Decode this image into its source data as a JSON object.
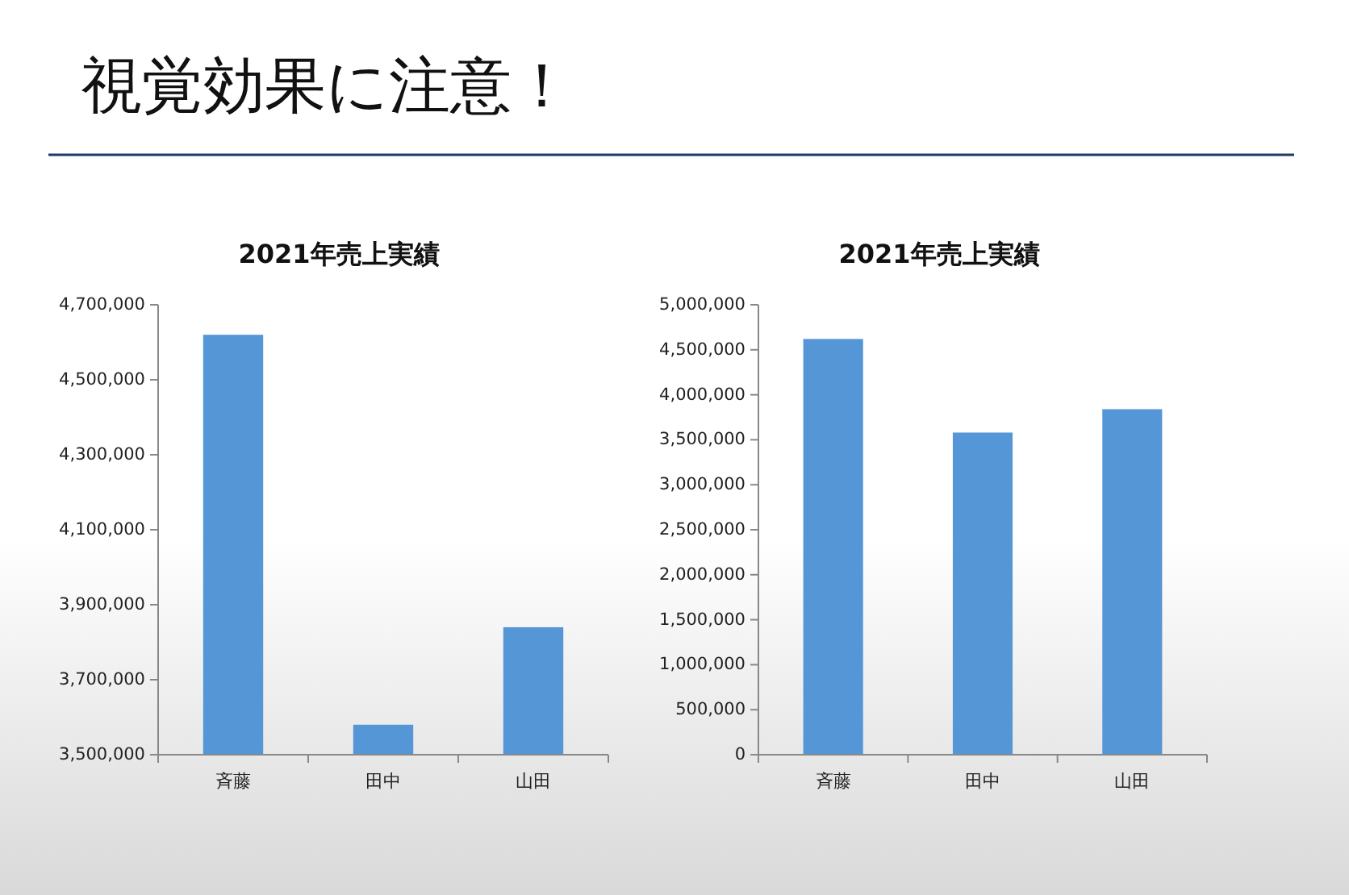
{
  "chart_data": [
    {
      "type": "bar",
      "title": "2021年売上実績",
      "annotations": [
        "視覚効果に注意！"
      ],
      "categories": [
        "斉藤",
        "田中",
        "山田"
      ],
      "values": [
        4620000,
        3580000,
        3840000
      ],
      "color": "#5596d6",
      "ylim": [
        3500000,
        4700000
      ],
      "yticks": [
        {
          "value": 3500000,
          "label": "3,500,000"
        },
        {
          "value": 3700000,
          "label": "3,700,000"
        },
        {
          "value": 3900000,
          "label": "3,900,000"
        },
        {
          "value": 4100000,
          "label": "4,100,000"
        },
        {
          "value": 4300000,
          "label": "4,300,000"
        },
        {
          "value": 4500000,
          "label": "4,500,000"
        },
        {
          "value": 4700000,
          "label": "4,700,000"
        }
      ]
    },
    {
      "type": "bar",
      "title": "2021年売上実績",
      "categories": [
        "斉藤",
        "田中",
        "山田"
      ],
      "values": [
        4620000,
        3580000,
        3840000
      ],
      "color": "#5596d6",
      "ylim": [
        0,
        5000000
      ],
      "yticks": [
        0,
        {
          "value": 500000,
          "label": "500,000"
        },
        {
          "value": 1000000,
          "label": "1,000,000"
        },
        {
          "value": 1500000,
          "label": "1,500,000"
        },
        {
          "value": 2000000,
          "label": "2,000,000"
        },
        {
          "value": 2500000,
          "label": "2,500,000"
        },
        {
          "value": 3000000,
          "label": "3,000,000"
        },
        {
          "value": 3500000,
          "label": "3,500,000"
        },
        {
          "value": 4000000,
          "label": "4,000,000"
        },
        {
          "value": 4500000,
          "label": "4,500,000"
        },
        {
          "value": 5000000,
          "label": "5,000,000"
        }
      ]
    }
  ]
}
